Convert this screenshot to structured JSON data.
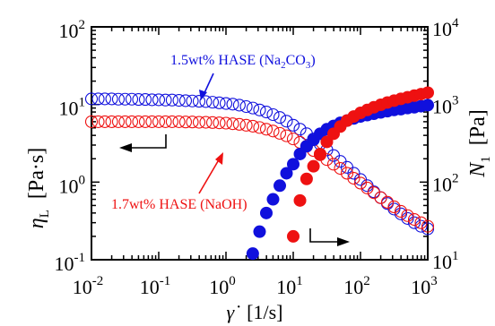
{
  "colors": {
    "series_a": "#1010dd",
    "series_b": "#ee1111",
    "axis": "#000000"
  },
  "chart_data": {
    "type": "scatter",
    "x_axis": {
      "label_symbol": "γ̇",
      "label_unit": "[1/s]",
      "scale": "log",
      "range": [
        0.01,
        1000
      ],
      "ticks": [
        {
          "value": 0.01,
          "base": "10",
          "exp": "-2"
        },
        {
          "value": 0.1,
          "base": "10",
          "exp": "-1"
        },
        {
          "value": 1,
          "base": "10",
          "exp": "0"
        },
        {
          "value": 10,
          "base": "10",
          "exp": "1"
        },
        {
          "value": 100,
          "base": "10",
          "exp": "2"
        },
        {
          "value": 1000,
          "base": "10",
          "exp": "3"
        }
      ]
    },
    "y_left": {
      "label_symbol": "η",
      "label_sub": "L",
      "label_unit": "[Pa·s]",
      "scale": "log",
      "range": [
        0.1,
        100
      ],
      "ticks": [
        {
          "value": 0.1,
          "base": "10",
          "exp": "-1"
        },
        {
          "value": 1,
          "base": "10",
          "exp": "0"
        },
        {
          "value": 10,
          "base": "10",
          "exp": "1"
        },
        {
          "value": 100,
          "base": "10",
          "exp": "2"
        }
      ]
    },
    "y_right": {
      "label_symbol": "N",
      "label_sub": "1",
      "label_unit": "[Pa]",
      "scale": "log",
      "range": [
        10,
        10000
      ],
      "ticks": [
        {
          "value": 10,
          "base": "10",
          "exp": "1"
        },
        {
          "value": 100,
          "base": "10",
          "exp": "2"
        },
        {
          "value": 1000,
          "base": "10",
          "exp": "3"
        },
        {
          "value": 10000,
          "base": "10",
          "exp": "4"
        }
      ]
    },
    "grid": false,
    "series": [
      {
        "color": "#1010dd",
        "axis": "left",
        "marker": "open-circle",
        "x": [
          0.01,
          0.0126,
          0.0158,
          0.02,
          0.0251,
          0.0316,
          0.0398,
          0.0501,
          0.0631,
          0.0794,
          0.1,
          0.126,
          0.158,
          0.2,
          0.251,
          0.316,
          0.398,
          0.501,
          0.631,
          0.794,
          1,
          1.26,
          1.58,
          2,
          2.51,
          3.16,
          3.98,
          5.01,
          6.31,
          7.94,
          10,
          12.6,
          15.8,
          20,
          25.1,
          31.6,
          39.8,
          50.1,
          63.1,
          79.4,
          100,
          126,
          158,
          200,
          251,
          316,
          398,
          501,
          631,
          794,
          1000
        ],
        "y": [
          11.8,
          11.8,
          11.8,
          11.8,
          11.7,
          11.7,
          11.7,
          11.6,
          11.6,
          11.5,
          11.5,
          11.4,
          11.4,
          11.3,
          11.2,
          11.1,
          11,
          10.9,
          10.7,
          10.5,
          10.3,
          10.1,
          9.8,
          9.4,
          9,
          8.5,
          8,
          7.4,
          6.8,
          6.1,
          5.4,
          4.8,
          4.2,
          3.6,
          3.1,
          2.6,
          2.2,
          1.85,
          1.55,
          1.3,
          1.08,
          0.9,
          0.75,
          0.63,
          0.53,
          0.45,
          0.39,
          0.34,
          0.3,
          0.27,
          0.25
        ]
      },
      {
        "color": "#ee1111",
        "axis": "left",
        "marker": "open-circle",
        "x": [
          0.01,
          0.0126,
          0.0158,
          0.02,
          0.0251,
          0.0316,
          0.0398,
          0.0501,
          0.0631,
          0.0794,
          0.1,
          0.126,
          0.158,
          0.2,
          0.251,
          0.316,
          0.398,
          0.501,
          0.631,
          0.794,
          1,
          1.26,
          1.58,
          2,
          2.51,
          3.16,
          3.98,
          5.01,
          6.31,
          7.94,
          10,
          12.6,
          15.8,
          20,
          25.1,
          31.6,
          39.8,
          50.1,
          63.1,
          79.4,
          100,
          126,
          158,
          200,
          251,
          316,
          398,
          501,
          631,
          794,
          1000
        ],
        "y": [
          6.0,
          6.0,
          6.0,
          6.0,
          6.0,
          6.0,
          6.0,
          6.0,
          6.0,
          6.0,
          6.0,
          6.0,
          6.0,
          6.0,
          5.95,
          5.95,
          5.9,
          5.9,
          5.85,
          5.8,
          5.75,
          5.65,
          5.55,
          5.4,
          5.25,
          5.05,
          4.8,
          4.55,
          4.25,
          3.95,
          3.6,
          3.25,
          2.9,
          2.55,
          2.25,
          1.95,
          1.7,
          1.5,
          1.3,
          1.12,
          0.97,
          0.84,
          0.73,
          0.63,
          0.55,
          0.48,
          0.42,
          0.37,
          0.33,
          0.3,
          0.27
        ]
      },
      {
        "color": "#1010dd",
        "axis": "right",
        "marker": "filled-circle",
        "x": [
          2.5,
          3.16,
          3.98,
          5.01,
          6.31,
          7.94,
          10,
          12.6,
          15.8,
          20,
          25.1,
          31.6,
          39.8,
          50.1,
          63.1,
          79.4,
          100,
          126,
          158,
          200,
          251,
          316,
          398,
          501,
          631,
          794,
          1000
        ],
        "y": [
          12,
          23,
          40,
          60,
          90,
          130,
          170,
          230,
          290,
          350,
          420,
          480,
          530,
          580,
          620,
          660,
          700,
          730,
          760,
          790,
          820,
          850,
          870,
          900,
          920,
          950,
          980
        ]
      },
      {
        "color": "#ee1111",
        "axis": "right",
        "marker": "filled-circle",
        "x": [
          10,
          12.6,
          15.8,
          20,
          25.1,
          31.6,
          39.8,
          50.1,
          63.1,
          79.4,
          100,
          126,
          158,
          200,
          251,
          316,
          398,
          501,
          631,
          794,
          1000
        ],
        "y": [
          20,
          58,
          110,
          160,
          230,
          330,
          420,
          520,
          620,
          700,
          780,
          850,
          920,
          990,
          1060,
          1120,
          1180,
          1240,
          1300,
          1360,
          1420
        ]
      }
    ],
    "annotations": [
      {
        "id": "label_a",
        "pre": "1.5wt% HASE (Na",
        "sub1": "2",
        "mid": "CO",
        "sub2": "3",
        "post": ")",
        "color": "#1010dd"
      },
      {
        "id": "label_b",
        "text": "1.7wt% HASE (NaOH)",
        "color": "#ee1111"
      }
    ]
  }
}
